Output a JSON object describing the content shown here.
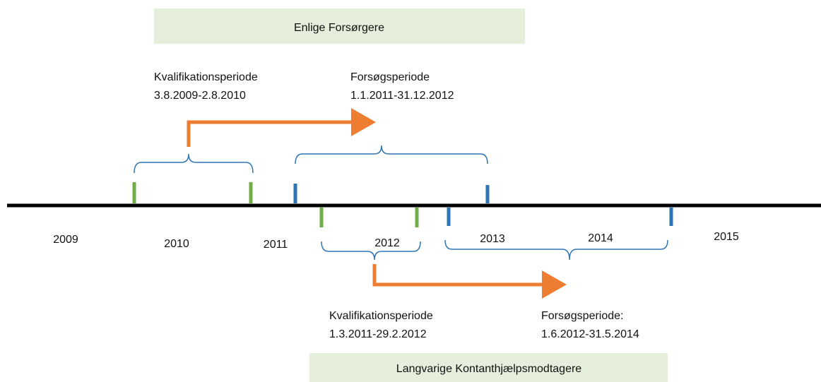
{
  "groups": [
    {
      "title": "Enlige Forsørgere",
      "qualification": {
        "label": "Kvalifikationsperiode",
        "dates": "3.8.2009-2.8.2010"
      },
      "trial": {
        "label": "Forsøgsperiode",
        "dates": "1.1.2011-31.12.2012"
      }
    },
    {
      "title": "Langvarige Kontanthjælpsmodtagere",
      "qualification": {
        "label": "Kvalifikationsperiode",
        "dates": "1.3.2011-29.2.2012"
      },
      "trial": {
        "label": "Forsøgsperiode:",
        "dates": "1.6.2012-31.5.2014"
      }
    }
  ],
  "years": [
    "2009",
    "2010",
    "2011",
    "2012",
    "2013",
    "2014",
    "2015"
  ]
}
